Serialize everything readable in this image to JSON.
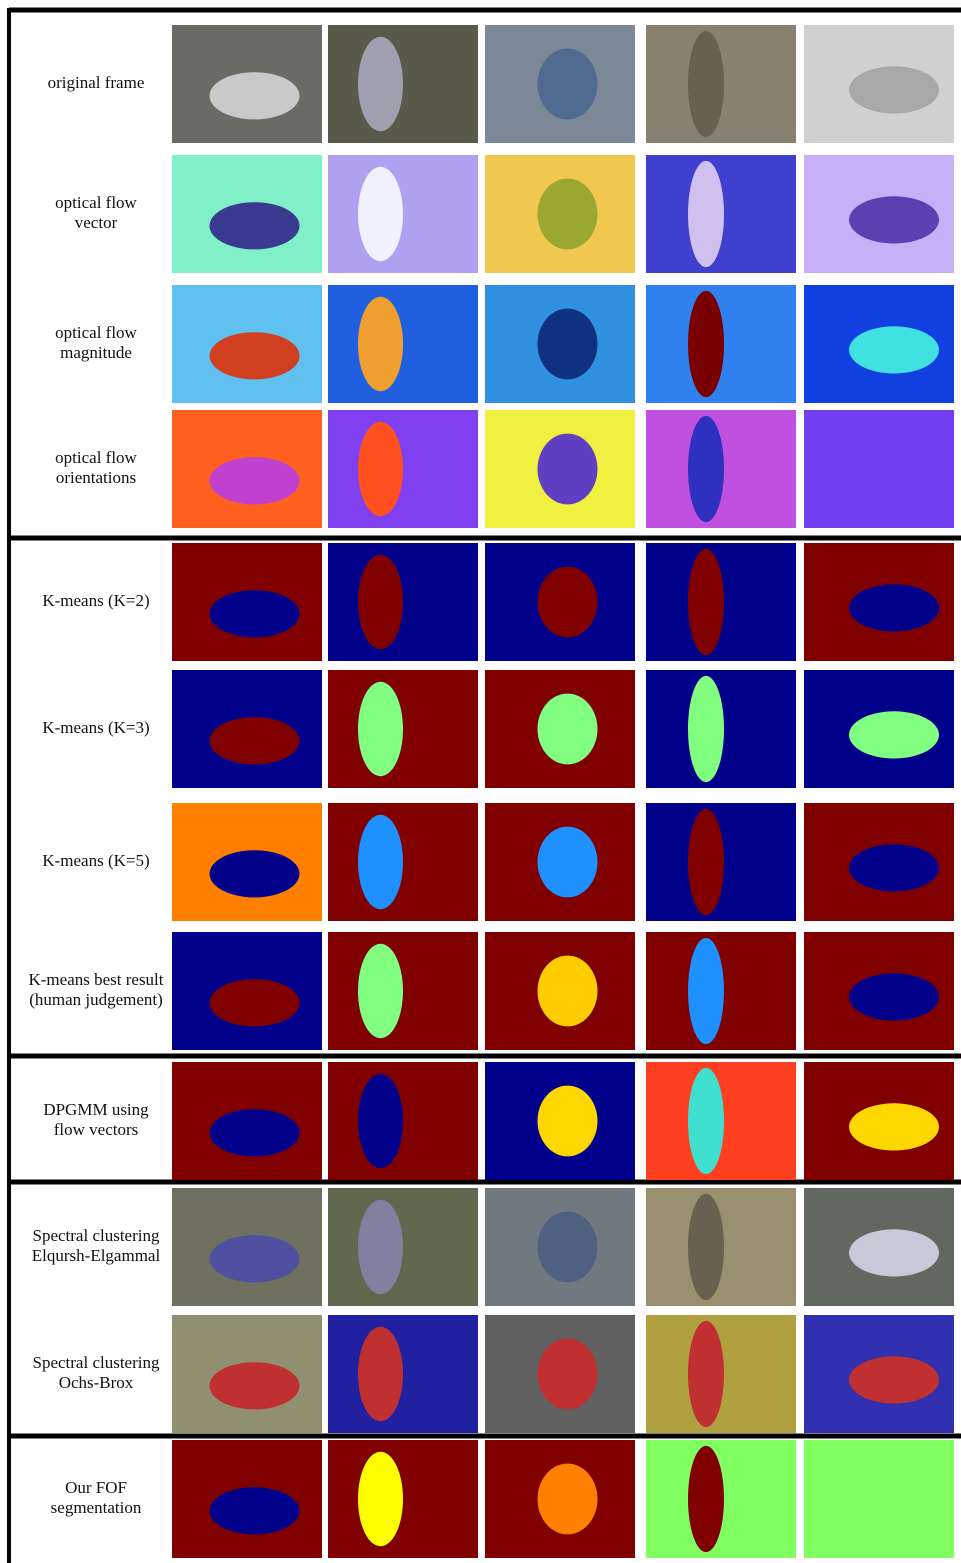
{
  "rows": [
    {
      "label": [
        "original frame"
      ]
    },
    {
      "label": [
        "optical flow",
        "vector"
      ]
    },
    {
      "label": [
        "optical flow",
        "magnitude"
      ]
    },
    {
      "label": [
        "optical flow",
        "orientations"
      ]
    },
    {
      "label": [
        "K-means (K=2)"
      ]
    },
    {
      "label": [
        "K-means (K=3)"
      ]
    },
    {
      "label": [
        "K-means (K=5)"
      ]
    },
    {
      "label": [
        "K-means best result",
        "(human judgement)"
      ]
    },
    {
      "label": [
        "DPGMM using",
        "flow vectors"
      ]
    },
    {
      "label": [
        "Spectral clustering",
        "Elqursh-Elgammal"
      ]
    },
    {
      "label": [
        "Spectral clustering",
        "Ochs-Brox"
      ]
    },
    {
      "label": [
        "Our FOF",
        "segmentation"
      ]
    }
  ]
}
